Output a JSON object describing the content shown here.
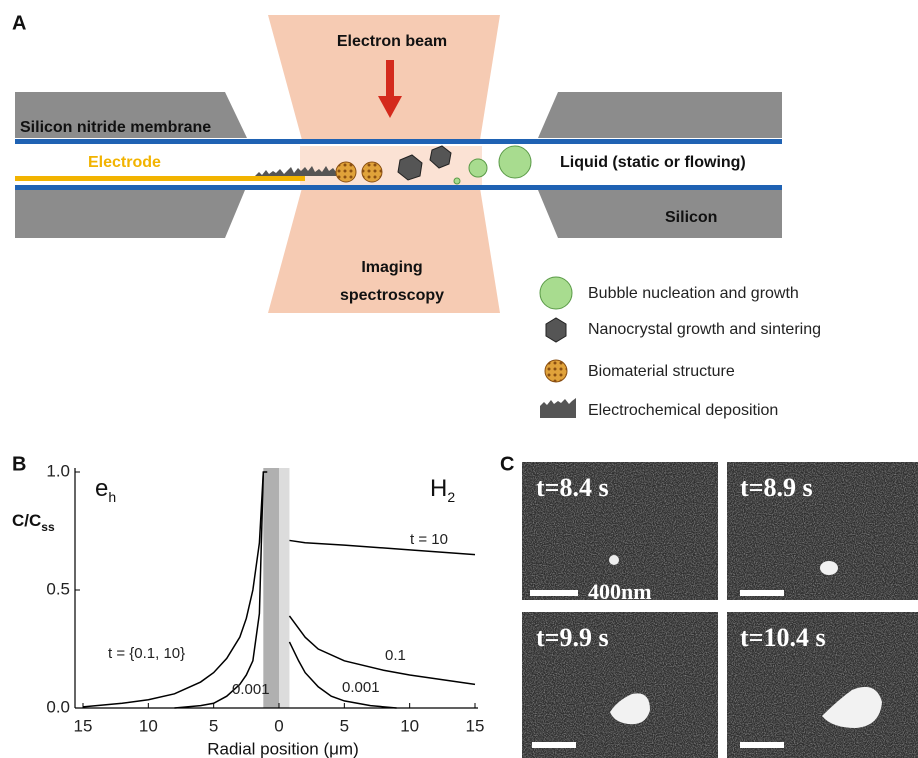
{
  "panel_labels": [
    "A",
    "B",
    "C"
  ],
  "diagram": {
    "beam_label": "Electron beam",
    "membrane_label": "Silicon nitride membrane",
    "electrode_label": "Electrode",
    "liquid_label": "Liquid (static or flowing)",
    "silicon_label": "Silicon",
    "imaging_label": [
      "Imaging",
      "spectroscopy"
    ],
    "legend": [
      "Bubble nucleation and growth",
      "Nanocrystal growth and sintering",
      "Biomaterial structure",
      "Electrochemical deposition"
    ]
  },
  "chart_data": {
    "type": "line",
    "x_label": "Radial position (μm)",
    "y_label": [
      "C/C",
      "ss"
    ],
    "left_label": [
      "e",
      "h"
    ],
    "right_label": [
      "H",
      "2"
    ],
    "xlim": [
      -15,
      15
    ],
    "ylim": [
      0,
      1
    ],
    "xticks": [
      {
        "value": -15,
        "label": "15"
      },
      {
        "value": -10,
        "label": "10"
      },
      {
        "value": -5,
        "label": "5"
      },
      0,
      5,
      10,
      15
    ],
    "yticks": [
      {
        "value": 0,
        "label": "0.0"
      },
      0.5,
      {
        "value": 1,
        "label": "1.0"
      }
    ],
    "shaded_regions": [
      {
        "from": -1.2,
        "to": 0,
        "color": "#b0b0b0"
      },
      {
        "from": 0,
        "to": 0.8,
        "color": "#dcdcdc"
      }
    ],
    "series": [
      {
        "name": "t = {0.1, 10}",
        "color": "#000000",
        "x": [
          -15,
          -12,
          -10,
          -8,
          -6,
          -5,
          -4,
          -3,
          -2.5,
          -2,
          -1.5,
          -1.2,
          -0.9
        ],
        "values": [
          0.005,
          0.02,
          0.035,
          0.06,
          0.11,
          0.15,
          0.21,
          0.3,
          0.38,
          0.5,
          0.7,
          1.0,
          1.0
        ]
      },
      {
        "name": "0.001",
        "color": "#000000",
        "x": [
          -8,
          -6,
          -5,
          -4,
          -3,
          -2.5,
          -2,
          -1.5,
          -1.2
        ],
        "values": [
          0,
          0.01,
          0.02,
          0.05,
          0.1,
          0.14,
          0.2,
          0.4,
          1.0
        ]
      },
      {
        "name": "t = 10",
        "color": "#000000",
        "x": [
          0.8,
          2,
          5,
          10,
          15
        ],
        "values": [
          0.71,
          0.7,
          0.69,
          0.67,
          0.65
        ]
      },
      {
        "name": "0.1",
        "color": "#000000",
        "x": [
          0.8,
          2,
          3,
          5,
          8,
          10,
          15
        ],
        "values": [
          0.39,
          0.3,
          0.25,
          0.2,
          0.16,
          0.14,
          0.1
        ]
      },
      {
        "name": "0.001",
        "color": "#000000",
        "x": [
          0.8,
          1.5,
          2,
          3,
          4,
          5,
          7,
          9
        ],
        "values": [
          0.28,
          0.2,
          0.15,
          0.09,
          0.05,
          0.03,
          0.01,
          0
        ]
      }
    ]
  },
  "micrographs": {
    "frames": [
      "t=8.4 s",
      "t=8.9 s",
      "t=9.9 s",
      "t=10.4 s"
    ],
    "scale_label": "400nm"
  }
}
